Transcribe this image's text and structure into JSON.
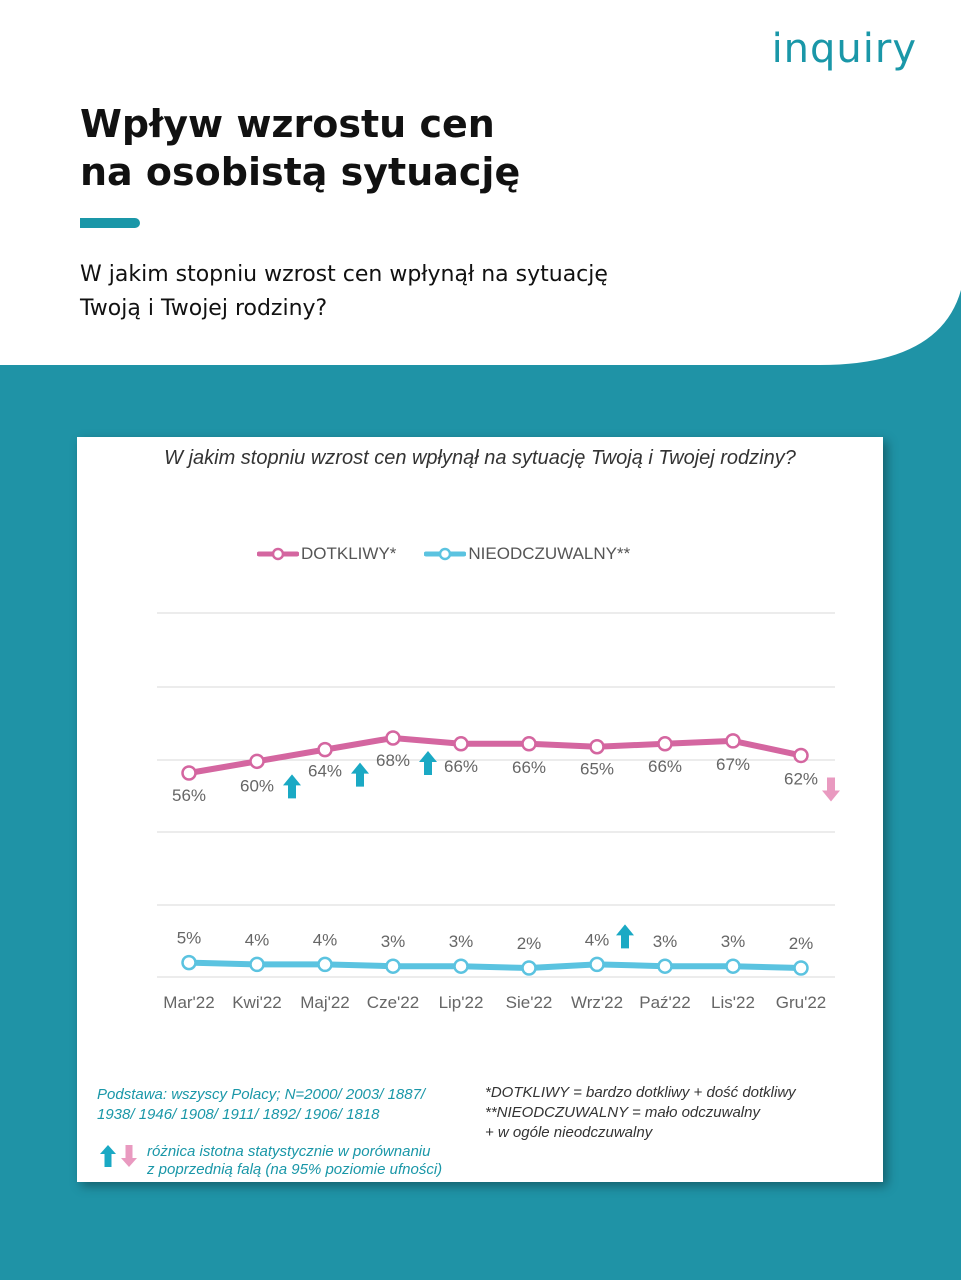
{
  "brand": {
    "logo": "inquiry"
  },
  "header": {
    "title_line1": "Wpływ wzrostu cen",
    "title_line2": "na osobistą sytuację",
    "subtitle_line1": "W jakim stopniu wzrost cen wpłynął na sytuację",
    "subtitle_line2": "Twoją i Twojej rodziny?"
  },
  "colors": {
    "teal": "#1a97a8",
    "pink_series": "#d466a0",
    "blue_series": "#5bc3e0",
    "arrow_up": "#1aa9c4",
    "arrow_down": "#e99ac0"
  },
  "chart_data": {
    "type": "line",
    "title": "W jakim stopniu wzrost cen wpłynął na sytuację Twoją i Twojej rodziny?",
    "categories": [
      "Mar'22",
      "Kwi'22",
      "Maj'22",
      "Cze'22",
      "Lip'22",
      "Sie'22",
      "Wrz'22",
      "Paź'22",
      "Lis'22",
      "Gru'22"
    ],
    "series": [
      {
        "name": "DOTKLIWY*",
        "values": [
          56,
          60,
          64,
          68,
          66,
          66,
          65,
          66,
          67,
          62
        ],
        "labels": [
          "56%",
          "60%",
          "64%",
          "68%",
          "66%",
          "66%",
          "65%",
          "66%",
          "67%",
          "62%"
        ],
        "significance": [
          "",
          "up",
          "up",
          "up",
          "",
          "",
          "",
          "",
          "",
          "down"
        ],
        "color": "#d466a0"
      },
      {
        "name": "NIEODCZUWALNY**",
        "values": [
          5,
          4,
          4,
          3,
          3,
          2,
          4,
          3,
          3,
          2
        ],
        "labels": [
          "5%",
          "4%",
          "4%",
          "3%",
          "3%",
          "2%",
          "4%",
          "3%",
          "3%",
          "2%"
        ],
        "significance": [
          "",
          "",
          "",
          "",
          "",
          "",
          "up",
          "",
          "",
          ""
        ],
        "color": "#5bc3e0"
      }
    ],
    "legend_position": "top",
    "gridlines": true
  },
  "footnotes": {
    "base_line1": "Podstawa: wszyscy Polacy; N=2000/ 2003/ 1887/",
    "base_line2": "1938/ 1946/ 1908/ 1911/ 1892/ 1906/ 1818",
    "sig_line1": "różnica istotna statystycznie w porównaniu",
    "sig_line2": "z poprzednią falą (na 95% poziomie ufności)",
    "def1": "*DOTKLIWY = bardzo dotkliwy + dość dotkliwy",
    "def2": "**NIEODCZUWALNY = mało odczuwalny",
    "def3": "+ w ogóle nieodczuwalny"
  }
}
